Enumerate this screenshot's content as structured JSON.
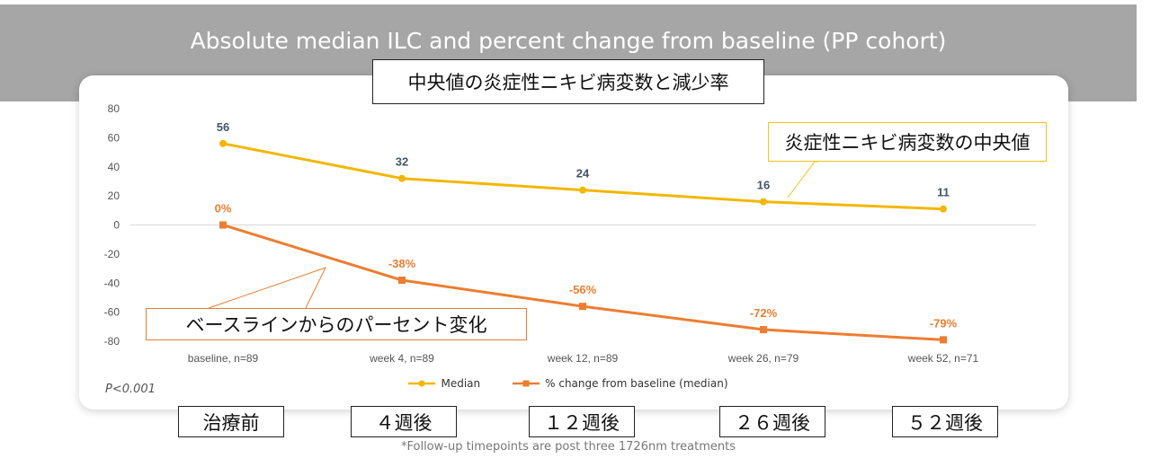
{
  "banner": {
    "title": "Absolute median ILC and percent change from baseline (PP cohort)"
  },
  "annotations": {
    "chart_title_jp": "中央値の炎症性ニキビ病変数と減少率",
    "median_label_jp": "炎症性ニキビ病変数の中央値",
    "percent_label_jp": "ベースラインからのパーセント変化",
    "pvalue": "P<0.001",
    "timepoints_jp": [
      "治療前",
      "４週後",
      "１２週後",
      "２６週後",
      "５２週後"
    ]
  },
  "footnote": "*Follow-up timepoints are post three 1726nm treatments",
  "colors": {
    "median": "#f2b705",
    "percent": "#ed7d31"
  },
  "chart_data": {
    "type": "line",
    "title": "Absolute median ILC and percent change from baseline (PP cohort)",
    "categories": [
      "baseline, n=89",
      "week 4, n=89",
      "week 12, n=89",
      "week 26, n=79",
      "week 52, n=71"
    ],
    "ylim": [
      -80,
      80
    ],
    "yticks": [
      80,
      60,
      40,
      20,
      0,
      -20,
      -40,
      -60,
      -80
    ],
    "grid": false,
    "legend": "bottom",
    "series": [
      {
        "name": "Median",
        "values": [
          56,
          32,
          24,
          16,
          11
        ],
        "labels": [
          "56",
          "32",
          "24",
          "16",
          "11"
        ],
        "marker": "circle"
      },
      {
        "name": "% change from baseline (median)",
        "values": [
          0,
          -38,
          -56,
          -72,
          -79
        ],
        "labels": [
          "0%",
          "-38%",
          "-56%",
          "-72%",
          "-79%"
        ],
        "marker": "square"
      }
    ]
  }
}
